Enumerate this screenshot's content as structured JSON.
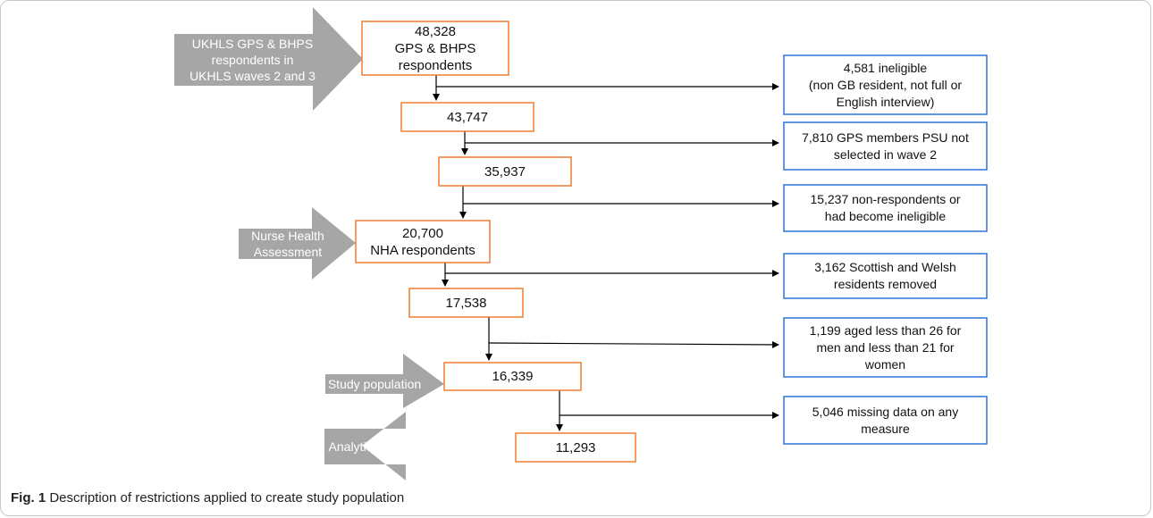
{
  "main_boxes": [
    {
      "lines": [
        "48,328",
        "GPS & BHPS",
        "respondents"
      ]
    },
    {
      "lines": [
        "43,747"
      ]
    },
    {
      "lines": [
        "35,937"
      ]
    },
    {
      "lines": [
        "20,700",
        "NHA respondents"
      ]
    },
    {
      "lines": [
        "17,538"
      ]
    },
    {
      "lines": [
        "16,339"
      ]
    },
    {
      "lines": [
        "11,293"
      ]
    }
  ],
  "exclusion_boxes": [
    {
      "lines": [
        "4,581 ineligible",
        "(non GB resident, not full or",
        "English interview)"
      ]
    },
    {
      "lines": [
        "7,810 GPS members PSU not",
        "selected in wave 2"
      ]
    },
    {
      "lines": [
        "15,237 non-respondents or",
        "had become ineligible"
      ]
    },
    {
      "lines": [
        "3,162 Scottish and Welsh",
        "residents removed"
      ]
    },
    {
      "lines": [
        "1,199 aged less than 26 for",
        "men and less than 21 for",
        "women"
      ]
    },
    {
      "lines": [
        "5,046 missing data on any",
        "measure"
      ]
    }
  ],
  "stage_arrows": [
    {
      "lines": [
        "UKHLS GPS & BHPS",
        "respondents in",
        "UKHLS waves 2 and 3"
      ]
    },
    {
      "lines": [
        "Nurse Health",
        "Assessment"
      ]
    },
    {
      "lines": [
        "Study population"
      ]
    },
    {
      "lines": [
        "Analytical sample"
      ]
    }
  ],
  "caption": {
    "label": "Fig. 1",
    "text": " Description of restrictions applied to create study population"
  },
  "colors": {
    "main_box_border": "#ed7d31",
    "exclusion_box_border": "#2e75d6",
    "arrow_fill": "#a6a6a6",
    "connector": "#000000"
  }
}
